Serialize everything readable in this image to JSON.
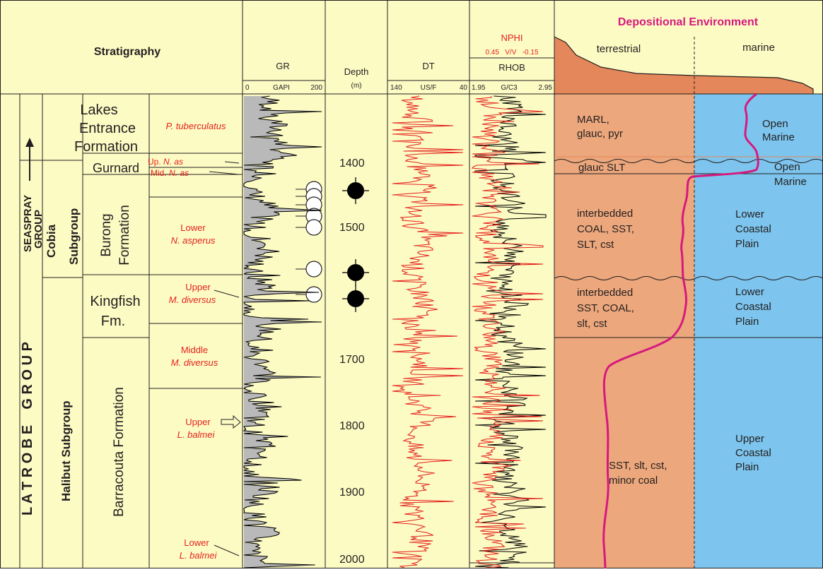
{
  "colors": {
    "panel": "#fdfbc4",
    "gr_fill": "#b9b9b9",
    "log_red": "#e3231e",
    "terrestrial": "#eca77c",
    "terrestrial_profile": "#e4875a",
    "marine": "#7dc5ee",
    "marine_water": "#2fb3e8",
    "env_curve": "#d6197f",
    "text_red": "#e3231e"
  },
  "header": {
    "stratigraphy": "Stratigraphy",
    "gr_title": "GR",
    "gr_min": "0",
    "gr_unit": "GAPI",
    "gr_max": "200",
    "depth_title": "Depth",
    "depth_unit": "(m)",
    "dt_title": "DT",
    "dt_min": "140",
    "dt_unit": "US/F",
    "dt_max": "40",
    "nphi_title": "NPHI",
    "nphi_scale": "0.45   V/V   -0.15",
    "rhob_title": "RHOB",
    "rhob_min": "1.95",
    "rhob_unit": "G/C3",
    "rhob_max": "2.95",
    "env_title": "Depositional Environment",
    "terrestrial": "terrestrial",
    "marine": "marine"
  },
  "groups": {
    "seaspray_1": "SEASPRAY",
    "seaspray_2": "GROUP",
    "latrobe": "L A T R O B E    G R O U P",
    "cobia_1": "Cobia",
    "cobia_2": "Subgroup",
    "halibut": "Halibut Subgroup"
  },
  "formations": {
    "lakes_1": "Lakes",
    "lakes_2": "Entrance",
    "lakes_3": "Formation",
    "gurnard": "Gurnard",
    "burong_1": "Burong",
    "burong_2": "Formation",
    "kingfish_1": "Kingfish",
    "kingfish_2": "Fm.",
    "barracouta": "Barracouta Formation"
  },
  "zones": {
    "p_tub": "P. tuberculatus",
    "up_nas_prefix": "Up. ",
    "up_nas": "N. as",
    "mid_nas_prefix": "Mid. ",
    "mid_nas": "N. as",
    "lower_nasp_1": "Lower",
    "lower_nasp_2": "N. asperus",
    "upper_mdiv_1": "Upper",
    "upper_mdiv_2": "M. diversus",
    "middle_mdiv_1": "Middle",
    "middle_mdiv_2": "M. diversus",
    "upper_lbal_1": "Upper",
    "upper_lbal_2": "L. balmei",
    "lower_lbal_1": "Lower",
    "lower_lbal_2": "L. balmei"
  },
  "depths": [
    "1400",
    "1500",
    "1700",
    "1800",
    "1900",
    "2000"
  ],
  "lithology": {
    "marl_1": "MARL,",
    "marl_2": "glauc, pyr",
    "glauc_slt": "glauc SLT",
    "burong_1": "interbedded",
    "burong_2": "COAL, SST,",
    "burong_3": "SLT, cst",
    "kingfish_1": "interbedded",
    "kingfish_2": "SST, COAL,",
    "kingfish_3": "slt, cst",
    "barra_1": "SST, slt, cst,",
    "barra_2": "minor coal"
  },
  "environments": {
    "open_marine_a_1": "Open",
    "open_marine_a_2": "Marine",
    "open_marine_b_1": "Open",
    "open_marine_b_2": "Marine",
    "lcp_a_1": "Lower",
    "lcp_a_2": "Coastal",
    "lcp_a_3": "Plain",
    "lcp_b_1": "Lower",
    "lcp_b_2": "Coastal",
    "lcp_b_3": "Plain",
    "ucp_1": "Upper",
    "ucp_2": "Coastal",
    "ucp_3": "Plain"
  }
}
